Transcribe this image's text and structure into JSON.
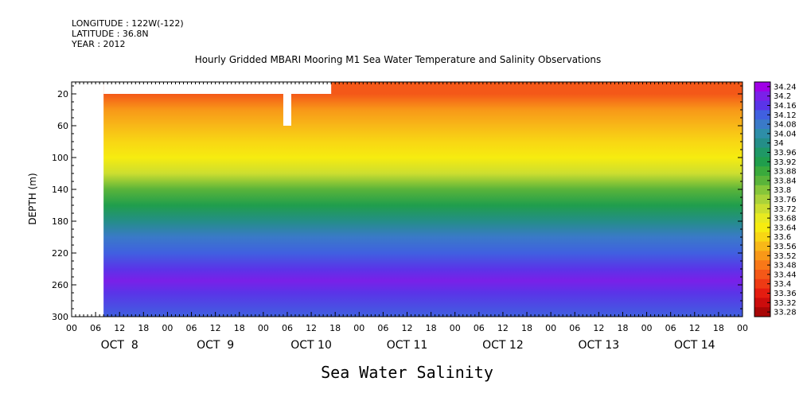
{
  "header": {
    "longitude": "LONGITUDE : 122W(-122)",
    "latitude": "LATITUDE : 36.8N",
    "year": "YEAR : 2012"
  },
  "chart_data": {
    "type": "heatmap",
    "title": "Hourly Gridded MBARI Mooring M1 Sea Water Temperature and Salinity Observations",
    "xlabel": "Sea Water Salinity",
    "ylabel": "DEPTH (m)",
    "x_range_hours": [
      0,
      168
    ],
    "data_start_hour": 8,
    "y_range_depth_m": [
      300,
      5
    ],
    "y_ticks": [
      "20",
      "60",
      "100",
      "140",
      "180",
      "220",
      "260",
      "300"
    ],
    "x_hour_ticks": [
      "00",
      "06",
      "12",
      "18",
      "00",
      "06",
      "12",
      "18",
      "00",
      "06",
      "12",
      "18",
      "00",
      "06",
      "12",
      "18",
      "00",
      "06",
      "12",
      "18",
      "00",
      "06",
      "12",
      "18",
      "00",
      "06",
      "12",
      "18",
      "00"
    ],
    "day_labels": [
      "OCT  8",
      "OCT  9",
      "OCT 10",
      "OCT 11",
      "OCT 12",
      "OCT 13",
      "OCT 14"
    ],
    "colorbar_labels": [
      "34.24",
      "34.2",
      "34.16",
      "34.12",
      "34.08",
      "34.04",
      "34",
      "33.96",
      "33.92",
      "33.88",
      "33.84",
      "33.8",
      "33.76",
      "33.72",
      "33.68",
      "33.64",
      "33.6",
      "33.56",
      "33.52",
      "33.48",
      "33.44",
      "33.4",
      "33.36",
      "33.32",
      "33.28"
    ],
    "colorbar_range": [
      33.28,
      34.24
    ],
    "colorbar_colors": [
      "#a000e6",
      "#7a20e8",
      "#5a34e8",
      "#4060e0",
      "#3a7ac8",
      "#2e8ea8",
      "#248e88",
      "#1f9866",
      "#209e4c",
      "#3aaa3c",
      "#5ab43a",
      "#86c63a",
      "#aad23a",
      "#ccde30",
      "#e8ea20",
      "#f6ec10",
      "#f8d614",
      "#f8b818",
      "#f89818",
      "#f87818",
      "#f45818",
      "#ee3a14",
      "#e41c10",
      "#cc0c0c",
      "#a80606"
    ],
    "profile": [
      {
        "depth": 5,
        "salinity": 33.44
      },
      {
        "depth": 20,
        "salinity": 33.47
      },
      {
        "depth": 40,
        "salinity": 33.52
      },
      {
        "depth": 60,
        "salinity": 33.55
      },
      {
        "depth": 80,
        "salinity": 33.6
      },
      {
        "depth": 100,
        "salinity": 33.66
      },
      {
        "depth": 120,
        "salinity": 33.74
      },
      {
        "depth": 140,
        "salinity": 33.84
      },
      {
        "depth": 160,
        "salinity": 33.92
      },
      {
        "depth": 180,
        "salinity": 34.0
      },
      {
        "depth": 200,
        "salinity": 34.06
      },
      {
        "depth": 220,
        "salinity": 34.1
      },
      {
        "depth": 240,
        "salinity": 34.14
      },
      {
        "depth": 255,
        "salinity": 34.17
      },
      {
        "depth": 270,
        "salinity": 34.15
      },
      {
        "depth": 300,
        "salinity": 34.12
      }
    ],
    "missing_data": [
      {
        "hour_start": 8,
        "hour_end": 65,
        "depth_top": 5,
        "depth_bottom": 20
      },
      {
        "hour_start": 53,
        "hour_end": 55,
        "depth_top": 20,
        "depth_bottom": 60
      }
    ]
  }
}
